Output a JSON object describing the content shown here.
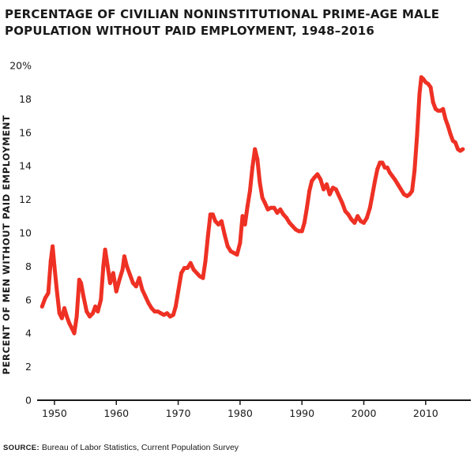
{
  "title_lines": [
    "PERCENTAGE OF CIVILIAN NONINSTITUTIONAL PRIME-AGE MALE",
    "POPULATION WITHOUT PAID EMPLOYMENT, 1948–2016"
  ],
  "source": {
    "label": "SOURCE:",
    "text": "Bureau of Labor Statistics, Current Population Survey"
  },
  "colors": {
    "line": "#ee3124",
    "axis": "#1a1a1a"
  },
  "chart_data": {
    "type": "line",
    "title": "PERCENTAGE OF CIVILIAN NONINSTITUTIONAL PRIME-AGE MALE POPULATION WITHOUT PAID EMPLOYMENT, 1948–2016",
    "xlabel": "",
    "ylabel": "PERCENT OF MEN WITHOUT PAID EMPLOYMENT",
    "xlim": [
      1947.2,
      2017.3
    ],
    "ylim": [
      0,
      20
    ],
    "x_ticks": [
      1950,
      1960,
      1970,
      1980,
      1990,
      2000,
      2010
    ],
    "y_ticks": [
      0,
      2,
      4,
      6,
      8,
      10,
      12,
      14,
      16,
      18,
      20
    ],
    "y_tick_labels": [
      "0",
      "2",
      "4",
      "6",
      "8",
      "10",
      "12",
      "14",
      "16",
      "18",
      "20%"
    ],
    "grid": false,
    "series": [
      {
        "color": "#ee3124",
        "x": [
          1948.0,
          1948.5,
          1949.0,
          1949.4,
          1949.7,
          1950.0,
          1950.4,
          1950.8,
          1951.2,
          1951.6,
          1952.0,
          1952.4,
          1952.8,
          1953.2,
          1953.6,
          1954.0,
          1954.3,
          1954.7,
          1955.2,
          1955.7,
          1956.2,
          1956.6,
          1957.0,
          1957.5,
          1957.9,
          1958.2,
          1958.6,
          1959.0,
          1959.5,
          1960.0,
          1960.5,
          1961.0,
          1961.3,
          1961.7,
          1962.2,
          1962.7,
          1963.2,
          1963.7,
          1964.2,
          1964.7,
          1965.2,
          1965.7,
          1966.2,
          1966.7,
          1967.2,
          1967.7,
          1968.2,
          1968.7,
          1969.2,
          1969.6,
          1970.0,
          1970.5,
          1971.0,
          1971.5,
          1972.0,
          1972.5,
          1973.0,
          1973.5,
          1974.0,
          1974.4,
          1974.8,
          1975.2,
          1975.6,
          1976.0,
          1976.5,
          1977.0,
          1977.5,
          1978.0,
          1978.5,
          1979.0,
          1979.5,
          1980.0,
          1980.4,
          1980.8,
          1981.2,
          1981.6,
          1982.0,
          1982.4,
          1982.8,
          1983.2,
          1983.6,
          1984.0,
          1984.5,
          1985.0,
          1985.5,
          1986.0,
          1986.5,
          1987.0,
          1987.5,
          1988.0,
          1988.5,
          1989.0,
          1989.5,
          1990.0,
          1990.4,
          1990.8,
          1991.2,
          1991.6,
          1992.0,
          1992.5,
          1993.0,
          1993.5,
          1994.0,
          1994.5,
          1995.0,
          1995.5,
          1996.0,
          1996.5,
          1997.0,
          1997.5,
          1998.0,
          1998.5,
          1999.0,
          1999.5,
          2000.0,
          2000.5,
          2001.0,
          2001.4,
          2001.8,
          2002.2,
          2002.6,
          2003.0,
          2003.4,
          2003.8,
          2004.2,
          2004.6,
          2005.0,
          2005.5,
          2006.0,
          2006.5,
          2007.0,
          2007.4,
          2007.8,
          2008.2,
          2008.6,
          2009.0,
          2009.3,
          2009.6,
          2010.0,
          2010.4,
          2010.8,
          2011.2,
          2011.6,
          2012.0,
          2012.4,
          2012.8,
          2013.2,
          2013.6,
          2014.0,
          2014.4,
          2014.8,
          2015.2,
          2015.6,
          2016.0
        ],
        "values": [
          5.6,
          6.1,
          6.4,
          8.3,
          9.2,
          8.0,
          6.5,
          5.2,
          4.9,
          5.5,
          5.0,
          4.6,
          4.3,
          4.0,
          5.0,
          7.2,
          7.0,
          6.2,
          5.3,
          5.0,
          5.2,
          5.6,
          5.3,
          6.0,
          8.0,
          9.0,
          8.0,
          7.0,
          7.6,
          6.5,
          7.2,
          7.8,
          8.6,
          8.0,
          7.5,
          7.0,
          6.8,
          7.3,
          6.6,
          6.2,
          5.8,
          5.5,
          5.3,
          5.3,
          5.2,
          5.1,
          5.2,
          5.0,
          5.1,
          5.6,
          6.5,
          7.6,
          7.9,
          7.9,
          8.2,
          7.8,
          7.6,
          7.4,
          7.3,
          8.3,
          9.8,
          11.1,
          11.1,
          10.7,
          10.5,
          10.7,
          9.9,
          9.2,
          8.9,
          8.8,
          8.7,
          9.4,
          11.0,
          10.5,
          11.6,
          12.5,
          13.9,
          15.0,
          14.4,
          13.0,
          12.1,
          11.8,
          11.4,
          11.5,
          11.5,
          11.2,
          11.4,
          11.1,
          10.9,
          10.6,
          10.4,
          10.2,
          10.1,
          10.1,
          10.6,
          11.5,
          12.5,
          13.1,
          13.3,
          13.5,
          13.2,
          12.6,
          12.9,
          12.3,
          12.7,
          12.6,
          12.2,
          11.8,
          11.3,
          11.1,
          10.8,
          10.6,
          11.0,
          10.7,
          10.6,
          10.9,
          11.5,
          12.3,
          13.1,
          13.8,
          14.2,
          14.2,
          13.9,
          13.9,
          13.6,
          13.4,
          13.2,
          12.9,
          12.6,
          12.3,
          12.2,
          12.3,
          12.5,
          13.7,
          15.8,
          18.3,
          19.3,
          19.2,
          19.0,
          18.9,
          18.7,
          17.8,
          17.4,
          17.3,
          17.3,
          17.4,
          16.8,
          16.4,
          15.9,
          15.5,
          15.4,
          15.0,
          14.9,
          15.0
        ]
      }
    ]
  }
}
